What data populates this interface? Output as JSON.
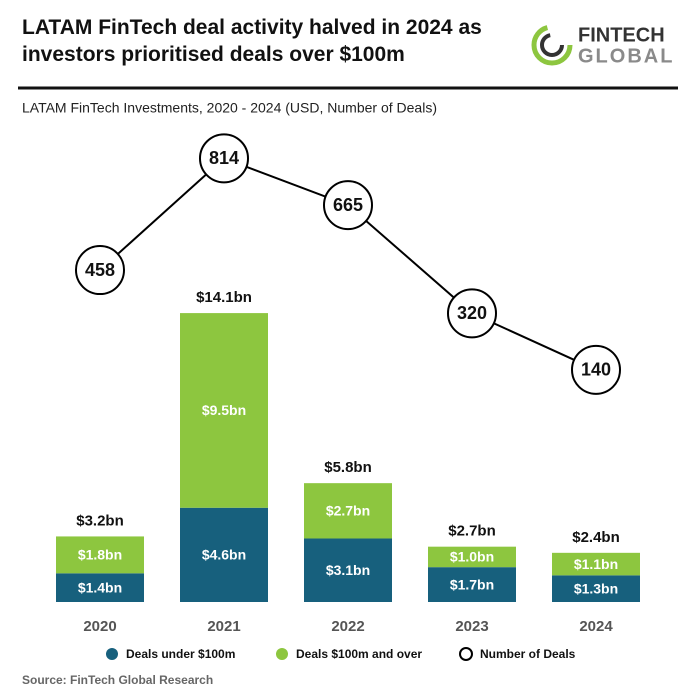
{
  "logo": {
    "line1": "FINTECH",
    "line2": "GLOBAL"
  },
  "chart_data": {
    "type": "bar_line",
    "title": "LATAM FinTech deal activity halved in 2024 as investors prioritised deals over $100m",
    "subtitle": "LATAM FinTech Investments, 2020 - 2024 (USD, Number of Deals)",
    "source": "Source: FinTech Global Research",
    "categories": [
      "2020",
      "2021",
      "2022",
      "2023",
      "2024"
    ],
    "series": [
      {
        "name": "Deals under $100m",
        "color": "#17607d",
        "values": [
          1.4,
          4.6,
          3.1,
          1.7,
          1.3
        ],
        "value_labels": [
          "$1.4bn",
          "$4.6bn",
          "$3.1bn",
          "$1.7bn",
          "$1.3bn"
        ]
      },
      {
        "name": "Deals $100m and over",
        "color": "#8dc63f",
        "values": [
          1.8,
          9.5,
          2.7,
          1.0,
          1.1
        ],
        "value_labels": [
          "$1.8bn",
          "$9.5bn",
          "$2.7bn",
          "$1.0bn",
          "$1.1bn"
        ]
      },
      {
        "name": "Number of Deals",
        "color": "#000000",
        "axis": "y2",
        "values": [
          458,
          814,
          665,
          320,
          140
        ]
      }
    ],
    "total_labels": [
      "$3.2bn",
      "$14.1bn",
      "$5.8bn",
      "$2.7bn",
      "$2.4bn"
    ],
    "ylim": [
      0,
      24.5
    ],
    "y2lim": [
      -600,
      1000
    ],
    "grid": false
  }
}
